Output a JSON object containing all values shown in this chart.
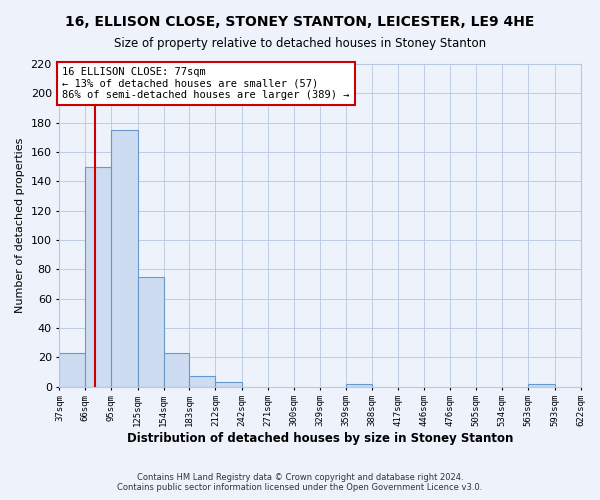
{
  "title": "16, ELLISON CLOSE, STONEY STANTON, LEICESTER, LE9 4HE",
  "subtitle": "Size of property relative to detached houses in Stoney Stanton",
  "xlabel": "Distribution of detached houses by size in Stoney Stanton",
  "ylabel": "Number of detached properties",
  "bin_edges": [
    37,
    66,
    95,
    125,
    154,
    183,
    212,
    242,
    271,
    300,
    329,
    359,
    388,
    417,
    446,
    476,
    505,
    534,
    563,
    593,
    622
  ],
  "bin_labels": [
    "37sqm",
    "66sqm",
    "95sqm",
    "125sqm",
    "154sqm",
    "183sqm",
    "212sqm",
    "242sqm",
    "271sqm",
    "300sqm",
    "329sqm",
    "359sqm",
    "388sqm",
    "417sqm",
    "446sqm",
    "476sqm",
    "505sqm",
    "534sqm",
    "563sqm",
    "593sqm",
    "622sqm"
  ],
  "counts": [
    23,
    150,
    175,
    75,
    23,
    7,
    3,
    0,
    0,
    0,
    0,
    2,
    0,
    0,
    0,
    0,
    0,
    0,
    2,
    0
  ],
  "bar_color": "#cddcf0",
  "bar_edge_color": "#6699cc",
  "property_line_x": 77,
  "property_line_color": "#cc0000",
  "annotation_line1": "16 ELLISON CLOSE: 77sqm",
  "annotation_line2": "← 13% of detached houses are smaller (57)",
  "annotation_line3": "86% of semi-detached houses are larger (389) →",
  "annotation_box_color": "white",
  "annotation_box_edge_color": "#cc0000",
  "ylim": [
    0,
    220
  ],
  "yticks": [
    0,
    20,
    40,
    60,
    80,
    100,
    120,
    140,
    160,
    180,
    200,
    220
  ],
  "footer_line1": "Contains HM Land Registry data © Crown copyright and database right 2024.",
  "footer_line2": "Contains public sector information licensed under the Open Government Licence v3.0.",
  "background_color": "#eef2fb",
  "grid_color": "#b8c8e0"
}
